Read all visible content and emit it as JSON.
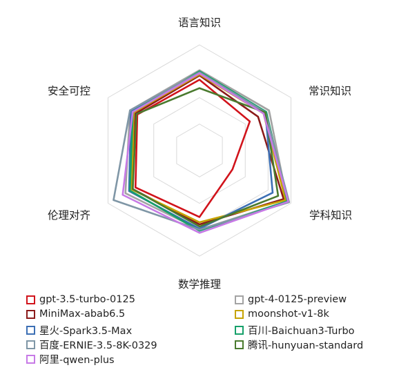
{
  "chart_data": {
    "type": "radar",
    "axes": [
      "语言知识",
      "常识知识",
      "学科知识",
      "数学推理",
      "伦理对齐",
      "安全可控"
    ],
    "rmax": 100,
    "gridlines": 4,
    "legend_position": "bottom",
    "series": [
      {
        "name": "gpt-3.5-turbo-0125",
        "color": "#d1131b",
        "values": [
          67,
          55,
          36,
          63,
          70,
          68
        ]
      },
      {
        "name": "gpt-4-0125-preview",
        "color": "#a3a3a3",
        "values": [
          76,
          76,
          96,
          75,
          81,
          76
        ]
      },
      {
        "name": "MiniMax-abab6.5",
        "color": "#8b1a1a",
        "values": [
          71,
          64,
          92,
          70,
          73,
          70
        ]
      },
      {
        "name": "moonshot-v1-8k",
        "color": "#c6a300",
        "values": [
          72,
          70,
          94,
          68,
          74,
          72
        ]
      },
      {
        "name": "星火-Spark3.5-Max",
        "color": "#3c6fb4",
        "values": [
          74,
          72,
          80,
          74,
          77,
          75
        ]
      },
      {
        "name": "百川-Baichuan3-Turbo",
        "color": "#16a06a",
        "values": [
          75,
          73,
          96,
          76,
          76,
          73
        ]
      },
      {
        "name": "百度-ERNIE-3.5-8K-0329",
        "color": "#7f96a6",
        "values": [
          74,
          72,
          98,
          75,
          94,
          76
        ]
      },
      {
        "name": "腾讯-hunyuan-standard",
        "color": "#4a7a2e",
        "values": [
          59,
          72,
          86,
          72,
          73,
          69
        ]
      },
      {
        "name": "阿里-qwen-plus",
        "color": "#c77ae6",
        "values": [
          73,
          70,
          97,
          78,
          84,
          73
        ]
      }
    ]
  }
}
